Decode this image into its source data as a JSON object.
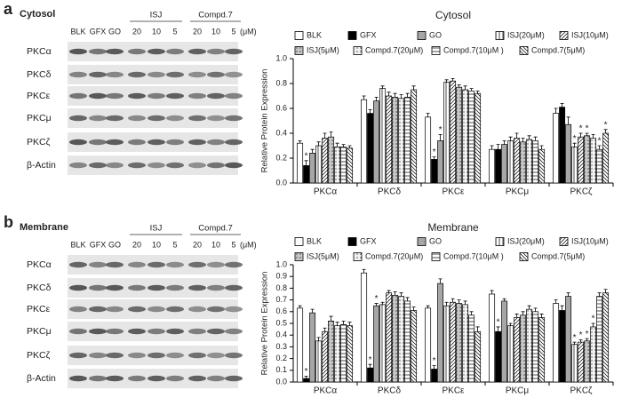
{
  "panels": [
    {
      "letter": "a",
      "compartment": "Cytosol",
      "groups": [
        "ISJ",
        "Compd.7"
      ],
      "lanes": [
        "BLK",
        "GFX",
        "GO",
        "20",
        "10",
        "5",
        "20",
        "10",
        "5"
      ],
      "unit": "(μM)",
      "rows": [
        "PKCα",
        "PKCδ",
        "PKCε",
        "PKCμ",
        "PKCζ",
        "β-Actin"
      ]
    },
    {
      "letter": "b",
      "compartment": "Membrane",
      "groups": [
        "ISJ",
        "Compd.7"
      ],
      "lanes": [
        "BLK",
        "GFX",
        "GO",
        "20",
        "10",
        "5",
        "20",
        "10",
        "5"
      ],
      "unit": "(μM)",
      "rows": [
        "PKCα",
        "PKCδ",
        "PKCε",
        "PKCμ",
        "PKCζ",
        "β-Actin"
      ]
    }
  ],
  "chart_data": [
    {
      "type": "bar",
      "title": "Cytosol",
      "y_label": "Relative Protein Expression",
      "categories": [
        "PKCα",
        "PKCδ",
        "PKCε",
        "PKCμ",
        "PKCζ"
      ],
      "ylim": [
        0,
        1
      ],
      "yticks": [
        {
          "value": 0,
          "label": "0.0"
        },
        0.2,
        0.4,
        0.6,
        0.8,
        {
          "value": 1,
          "label": "1.0"
        }
      ],
      "series": [
        {
          "name": "BLK",
          "color": "#ffffff",
          "pattern": "none",
          "values": [
            0.32,
            0.67,
            0.53,
            0.27,
            0.56
          ],
          "errors": [
            0.02,
            0.03,
            0.03,
            0.03,
            0.04
          ],
          "annotations": [
            null,
            null,
            null,
            null,
            null
          ]
        },
        {
          "name": "GFX",
          "color": "#000000",
          "pattern": "none",
          "values": [
            0.14,
            0.56,
            0.19,
            0.27,
            0.61
          ],
          "errors": [
            0.04,
            0.03,
            0.02,
            0.04,
            0.03
          ],
          "annotations": [
            "*",
            null,
            "*",
            null,
            null
          ]
        },
        {
          "name": "GO",
          "color": "#a6a6a6",
          "pattern": "none",
          "values": [
            0.24,
            0.66,
            0.34,
            0.31,
            0.47
          ],
          "errors": [
            0.03,
            0.03,
            0.05,
            0.03,
            0.06
          ],
          "annotations": [
            null,
            null,
            "*",
            null,
            null
          ]
        },
        {
          "name": "ISJ(20μM)",
          "color": "#ffffff",
          "pattern": "vlines",
          "values": [
            0.3,
            0.76,
            0.81,
            0.34,
            0.29
          ],
          "errors": [
            0.03,
            0.02,
            0.02,
            0.03,
            0.03
          ],
          "annotations": [
            null,
            null,
            null,
            null,
            "*"
          ]
        },
        {
          "name": "ISJ(10μM)",
          "color": "#ffffff",
          "pattern": "hatch",
          "values": [
            0.36,
            0.7,
            0.82,
            0.36,
            0.37
          ],
          "errors": [
            0.04,
            0.03,
            0.02,
            0.04,
            0.03
          ],
          "annotations": [
            null,
            null,
            null,
            null,
            "*"
          ]
        },
        {
          "name": "ISJ(5μM)",
          "color": "#c8c8c8",
          "pattern": "dots",
          "values": [
            0.37,
            0.69,
            0.77,
            0.33,
            0.38
          ],
          "errors": [
            0.04,
            0.03,
            0.02,
            0.03,
            0.02
          ],
          "annotations": [
            null,
            null,
            null,
            null,
            "*"
          ]
        },
        {
          "name": "Compd.7(20μM)",
          "color": "#f2f2f2",
          "pattern": "dots",
          "values": [
            0.29,
            0.68,
            0.75,
            0.35,
            0.36
          ],
          "errors": [
            0.03,
            0.03,
            0.03,
            0.03,
            0.03
          ],
          "annotations": [
            null,
            null,
            null,
            null,
            null
          ]
        },
        {
          "name": "Compd.7(10μM )",
          "color": "#ffffff",
          "pattern": "grid",
          "values": [
            0.29,
            0.69,
            0.74,
            0.34,
            0.27
          ],
          "errors": [
            0.02,
            0.03,
            0.02,
            0.03,
            0.03
          ],
          "annotations": [
            null,
            null,
            null,
            null,
            "*"
          ]
        },
        {
          "name": "Compd.7(5μM)",
          "color": "#ffffff",
          "pattern": "backhatch",
          "values": [
            0.28,
            0.75,
            0.72,
            0.27,
            0.4
          ],
          "errors": [
            0.02,
            0.03,
            0.02,
            0.03,
            0.03
          ],
          "annotations": [
            null,
            null,
            null,
            null,
            "*"
          ]
        }
      ]
    },
    {
      "type": "bar",
      "title": "Membrane",
      "y_label": "Relative Protein Expression",
      "categories": [
        "PKCα",
        "PKCδ",
        "PKCε",
        "PKCμ",
        "PKCζ"
      ],
      "ylim": [
        0,
        1
      ],
      "yticks": [
        {
          "value": 0,
          "label": "0.0"
        },
        0.1,
        0.2,
        0.3,
        0.4,
        0.5,
        0.6,
        0.7,
        0.8,
        0.9,
        {
          "value": 1,
          "label": "1.0"
        }
      ],
      "series": [
        {
          "name": "BLK",
          "color": "#ffffff",
          "pattern": "none",
          "values": [
            0.63,
            0.93,
            0.63,
            0.75,
            0.67
          ],
          "errors": [
            0.02,
            0.03,
            0.02,
            0.03,
            0.03
          ],
          "annotations": [
            null,
            null,
            null,
            null,
            null
          ]
        },
        {
          "name": "GFX",
          "color": "#000000",
          "pattern": "none",
          "values": [
            0.03,
            0.12,
            0.11,
            0.43,
            0.61
          ],
          "errors": [
            0.02,
            0.03,
            0.03,
            0.04,
            0.04
          ],
          "annotations": [
            "*",
            "*",
            "*",
            "*",
            null
          ]
        },
        {
          "name": "GO",
          "color": "#a6a6a6",
          "pattern": "none",
          "values": [
            0.59,
            0.65,
            0.84,
            0.69,
            0.73
          ],
          "errors": [
            0.03,
            0.02,
            0.04,
            0.02,
            0.03
          ],
          "annotations": [
            null,
            "*",
            null,
            null,
            null
          ]
        },
        {
          "name": "ISJ(20μM)",
          "color": "#ffffff",
          "pattern": "vlines",
          "values": [
            0.35,
            0.66,
            0.65,
            0.48,
            0.32
          ],
          "errors": [
            0.03,
            0.02,
            0.03,
            0.02,
            0.02
          ],
          "annotations": [
            null,
            null,
            null,
            null,
            "*"
          ]
        },
        {
          "name": "ISJ(10μM)",
          "color": "#ffffff",
          "pattern": "hatch",
          "values": [
            0.43,
            0.76,
            0.68,
            0.55,
            0.34
          ],
          "errors": [
            0.03,
            0.02,
            0.03,
            0.03,
            0.02
          ],
          "annotations": [
            null,
            null,
            null,
            null,
            "*"
          ]
        },
        {
          "name": "ISJ(5μM)",
          "color": "#c8c8c8",
          "pattern": "dots",
          "values": [
            0.52,
            0.74,
            0.67,
            0.57,
            0.35
          ],
          "errors": [
            0.04,
            0.03,
            0.03,
            0.03,
            0.02
          ],
          "annotations": [
            null,
            null,
            null,
            null,
            "*"
          ]
        },
        {
          "name": "Compd.7(20μM)",
          "color": "#f2f2f2",
          "pattern": "dots",
          "values": [
            0.48,
            0.73,
            0.66,
            0.62,
            0.47
          ],
          "errors": [
            0.03,
            0.03,
            0.03,
            0.03,
            0.03
          ],
          "annotations": [
            null,
            null,
            null,
            null,
            "*"
          ]
        },
        {
          "name": "Compd.7(10μM )",
          "color": "#ffffff",
          "pattern": "grid",
          "values": [
            0.49,
            0.69,
            0.57,
            0.6,
            0.73
          ],
          "errors": [
            0.03,
            0.03,
            0.03,
            0.03,
            0.03
          ],
          "annotations": [
            null,
            null,
            null,
            null,
            null
          ]
        },
        {
          "name": "Compd.7(5μM)",
          "color": "#ffffff",
          "pattern": "backhatch",
          "values": [
            0.48,
            0.61,
            0.43,
            0.55,
            0.76
          ],
          "errors": [
            0.03,
            0.03,
            0.04,
            0.03,
            0.03
          ],
          "annotations": [
            null,
            null,
            null,
            null,
            null
          ]
        }
      ]
    }
  ]
}
